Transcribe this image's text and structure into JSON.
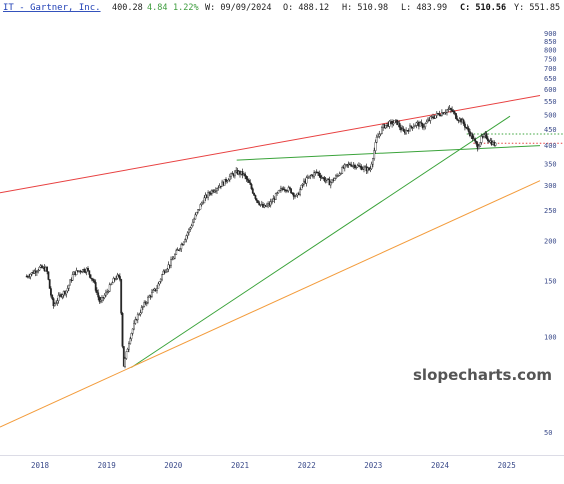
{
  "header": {
    "name": "IT - Gartner, Inc.",
    "last": "400.28",
    "change": "4.84",
    "change_pct": "1.22%",
    "date_label": "W: 09/09/2024",
    "open_label": "O: 488.12",
    "high_label": "H: 510.98",
    "low_label": "L: 483.99",
    "close_label": "C: 510.56",
    "y_label": "Y: 551.85"
  },
  "watermark": "slopecharts.com",
  "colors": {
    "candles": "#222222",
    "red_trendline": "#e84141",
    "green_trendline": "#3aa33a",
    "orange_trendline": "#f39c3c",
    "axis_text": "#3a4a8a",
    "name_link": "#1f3fb5"
  },
  "chart_data": {
    "type": "candlestick",
    "y_scale": "log",
    "ylim": [
      44,
      980
    ],
    "xlim": [
      2017.4,
      2025.5
    ],
    "x_tick_labels": [
      "2018",
      "2019",
      "2020",
      "2021",
      "2022",
      "2023",
      "2024",
      "2025"
    ],
    "y_tick_labels": [
      "900",
      "850",
      "800",
      "750",
      "700",
      "650",
      "600",
      "550",
      "500",
      "450",
      "400",
      "350",
      "300",
      "250",
      "200",
      "150",
      "100",
      "50"
    ],
    "price_path": [
      [
        2017.8,
        155
      ],
      [
        2017.9,
        160
      ],
      [
        2018.0,
        165
      ],
      [
        2018.1,
        163
      ],
      [
        2018.15,
        140
      ],
      [
        2018.2,
        125
      ],
      [
        2018.3,
        135
      ],
      [
        2018.4,
        140
      ],
      [
        2018.5,
        158
      ],
      [
        2018.6,
        162
      ],
      [
        2018.7,
        163
      ],
      [
        2018.8,
        150
      ],
      [
        2018.9,
        128
      ],
      [
        2019.0,
        138
      ],
      [
        2019.1,
        150
      ],
      [
        2019.15,
        155
      ],
      [
        2019.2,
        152
      ],
      [
        2019.25,
        80
      ],
      [
        2019.35,
        100
      ],
      [
        2019.45,
        115
      ],
      [
        2019.55,
        125
      ],
      [
        2019.65,
        135
      ],
      [
        2019.75,
        142
      ],
      [
        2019.85,
        160
      ],
      [
        2019.95,
        170
      ],
      [
        2020.05,
        185
      ],
      [
        2020.15,
        200
      ],
      [
        2020.25,
        220
      ],
      [
        2020.35,
        245
      ],
      [
        2020.45,
        270
      ],
      [
        2020.55,
        285
      ],
      [
        2020.65,
        295
      ],
      [
        2020.75,
        305
      ],
      [
        2020.85,
        320
      ],
      [
        2020.95,
        330
      ],
      [
        2021.05,
        325
      ],
      [
        2021.15,
        300
      ],
      [
        2021.25,
        270
      ],
      [
        2021.35,
        255
      ],
      [
        2021.45,
        262
      ],
      [
        2021.55,
        280
      ],
      [
        2021.65,
        295
      ],
      [
        2021.75,
        290
      ],
      [
        2021.85,
        275
      ],
      [
        2021.95,
        305
      ],
      [
        2022.05,
        320
      ],
      [
        2022.15,
        330
      ],
      [
        2022.25,
        315
      ],
      [
        2022.35,
        305
      ],
      [
        2022.45,
        320
      ],
      [
        2022.55,
        340
      ],
      [
        2022.65,
        350
      ],
      [
        2022.75,
        345
      ],
      [
        2022.85,
        340
      ],
      [
        2022.95,
        335
      ],
      [
        2023.05,
        420
      ],
      [
        2023.15,
        460
      ],
      [
        2023.25,
        470
      ],
      [
        2023.35,
        475
      ],
      [
        2023.45,
        440
      ],
      [
        2023.55,
        455
      ],
      [
        2023.65,
        470
      ],
      [
        2023.75,
        460
      ],
      [
        2023.85,
        485
      ],
      [
        2023.95,
        500
      ],
      [
        2024.05,
        510
      ],
      [
        2024.12,
        520
      ],
      [
        2024.18,
        515
      ],
      [
        2024.25,
        490
      ],
      [
        2024.32,
        480
      ],
      [
        2024.38,
        460
      ],
      [
        2024.44,
        440
      ],
      [
        2024.5,
        420
      ],
      [
        2024.56,
        395
      ],
      [
        2024.62,
        420
      ],
      [
        2024.68,
        430
      ],
      [
        2024.74,
        415
      ],
      [
        2024.8,
        405
      ],
      [
        2024.85,
        400
      ]
    ],
    "annotations": [
      {
        "type": "trendline",
        "color": "red",
        "points": [
          [
            2017.4,
            284
          ],
          [
            2025.5,
            575
          ]
        ]
      },
      {
        "type": "trendline",
        "color": "green",
        "points": [
          [
            2019.37,
            80
          ],
          [
            2025.05,
            495
          ]
        ]
      },
      {
        "type": "trendline",
        "color": "green",
        "points": [
          [
            2020.95,
            360
          ],
          [
            2025.5,
            400
          ]
        ]
      },
      {
        "type": "trendline",
        "color": "orange",
        "points": [
          [
            2017.4,
            52
          ],
          [
            2025.5,
            310
          ]
        ]
      },
      {
        "type": "hline",
        "color": "green",
        "style": "dotted",
        "y": 435,
        "x_start": 2024.4
      },
      {
        "type": "hline",
        "color": "red",
        "style": "dotted",
        "y": 407,
        "x_start": 2024.5
      }
    ]
  }
}
